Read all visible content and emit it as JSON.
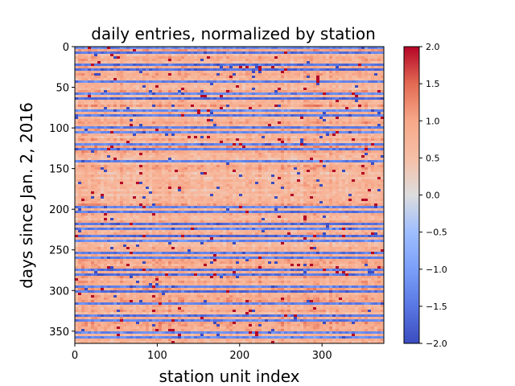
{
  "chart_data": {
    "type": "heatmap",
    "title": "daily entries, normalized by station",
    "xlabel": "station unit index",
    "ylabel": "days since Jan. 2, 2016",
    "xlim": [
      0,
      375
    ],
    "ylim": [
      0,
      365
    ],
    "y_inverted": true,
    "x_ticks": [
      0,
      100,
      200,
      300
    ],
    "y_ticks": [
      0,
      50,
      100,
      150,
      200,
      250,
      300,
      350
    ],
    "colormap": "coolwarm",
    "colorbar": {
      "min": -2.0,
      "max": 2.0,
      "ticks": [
        2.0,
        1.5,
        1.0,
        0.5,
        0.0,
        -0.5,
        -1.0,
        -1.5,
        -2.0
      ],
      "tick_labels": [
        "2.0",
        "1.5",
        "1.0",
        "0.5",
        "0.0",
        "−0.5",
        "−1.0",
        "−1.5",
        "−2.0"
      ]
    },
    "colors": {
      "low": "#3b4cc0",
      "mid": "#dddddd",
      "high": "#b40426"
    }
  }
}
